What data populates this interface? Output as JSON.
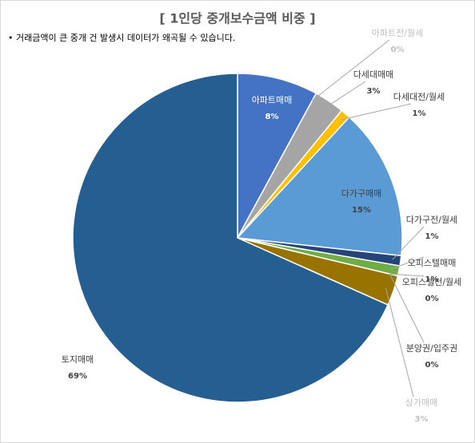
{
  "chart_data": {
    "type": "pie",
    "title": "[ 1인당 중개보수금액 비중 ]",
    "subtitle": "• 거래금액이 큰 중개 건 발생시 데이터가 왜곡될 수 있습니다.",
    "categories": [
      "아파트매매",
      "아파트전/월세",
      "다세대매매",
      "다세대전/월세",
      "다가구매매",
      "다가구전/월세",
      "오피스텔매매",
      "오피스텔전/월세",
      "분양권/입주권",
      "상가매매",
      "토지매매"
    ],
    "values": [
      8,
      0,
      3,
      1,
      15,
      1,
      1,
      0,
      0,
      3,
      69
    ],
    "value_labels": [
      "8%",
      "0%",
      "3%",
      "1%",
      "15%",
      "1%",
      "1%",
      "0%",
      "0%",
      "3%",
      "69%"
    ],
    "colors": [
      "#4472c4",
      "#ed7d31",
      "#a5a5a5",
      "#ffc000",
      "#5b9bd5",
      "#264478",
      "#70ad47",
      "#9e480e",
      "#636363",
      "#997300",
      "#255e91"
    ]
  }
}
